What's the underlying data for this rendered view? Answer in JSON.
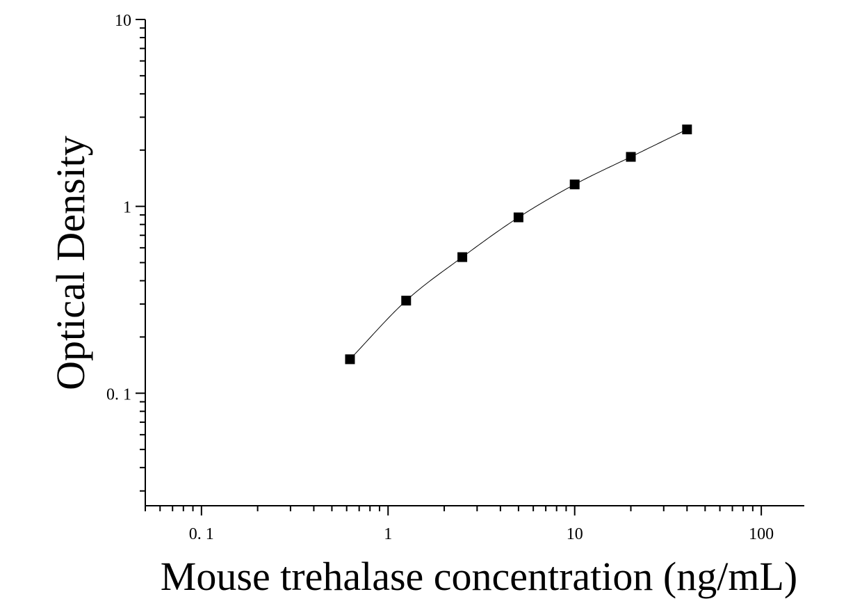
{
  "chart_data": {
    "type": "scatter",
    "title": "",
    "xlabel": "Mouse trehalase concentration (ng/mL)",
    "ylabel": "Optical Density",
    "x_scale": "log",
    "y_scale": "log",
    "xlim": [
      0.05,
      170
    ],
    "ylim": [
      0.025,
      10
    ],
    "x_ticks": [
      0.1,
      1,
      10,
      100
    ],
    "x_tick_labels": [
      "0. 1",
      "1",
      "10",
      "100"
    ],
    "y_ticks": [
      0.1,
      1,
      10
    ],
    "y_tick_labels": [
      "0. 1",
      "1",
      "10"
    ],
    "grid": false,
    "legend": "none",
    "marker": "square",
    "colors": {
      "marker": "#000000",
      "line": "#000000",
      "axis": "#000000"
    },
    "series": [
      {
        "x": [
          0.625,
          1.25,
          2.5,
          5,
          10,
          20,
          40
        ],
        "y": [
          0.152,
          0.313,
          0.535,
          0.873,
          1.31,
          1.84,
          2.58
        ]
      }
    ]
  }
}
